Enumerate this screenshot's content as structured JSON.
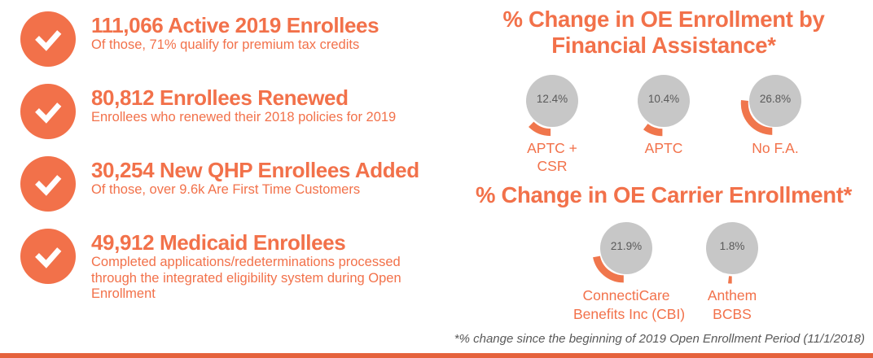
{
  "colors": {
    "accent_orange": "#F2714A",
    "arc_orange": "#F0764C",
    "bottom_bar": "#E5623C",
    "donut_disc_gray": "#C7C7C7",
    "donut_value_text": "#5A5A5A",
    "footnote_text": "#595959"
  },
  "stats": [
    {
      "title": "111,066 Active 2019 Enrollees",
      "subtitle": "Of those, 71% qualify for premium tax credits"
    },
    {
      "title": "80,812 Enrollees Renewed",
      "subtitle": "Enrollees who renewed their 2018 policies for 2019"
    },
    {
      "title": "30,254 New QHP Enrollees Added",
      "subtitle": "Of those, over 9.6k Are First Time Customers"
    },
    {
      "title": "49,912 Medicaid Enrollees",
      "subtitle": "Completed applications/redeterminations processed through the integrated eligibility system during Open Enrollment"
    }
  ],
  "chart_data": [
    {
      "type": "pie",
      "variant": "exploded-arc-gauge",
      "title": "% Change in OE Enrollment by Financial Assistance*",
      "categories": [
        "APTC + CSR",
        "APTC",
        "No F.A."
      ],
      "values": [
        12.4,
        10.4,
        26.8
      ],
      "unit": "%",
      "label_lines": [
        [
          "APTC +",
          "CSR"
        ],
        [
          "APTC"
        ],
        [
          "No F.A."
        ]
      ]
    },
    {
      "type": "pie",
      "variant": "exploded-arc-gauge",
      "title": "% Change in OE Carrier Enrollment*",
      "categories": [
        "ConnectiCare Benefits Inc (CBI)",
        "Anthem BCBS"
      ],
      "values": [
        21.9,
        1.8
      ],
      "unit": "%",
      "label_lines": [
        [
          "ConnectiCare",
          "Benefits Inc (CBI)"
        ],
        [
          "Anthem",
          "BCBS"
        ]
      ]
    }
  ],
  "footnote": "*% change since the beginning of 2019 Open Enrollment Period (11/1/2018)"
}
